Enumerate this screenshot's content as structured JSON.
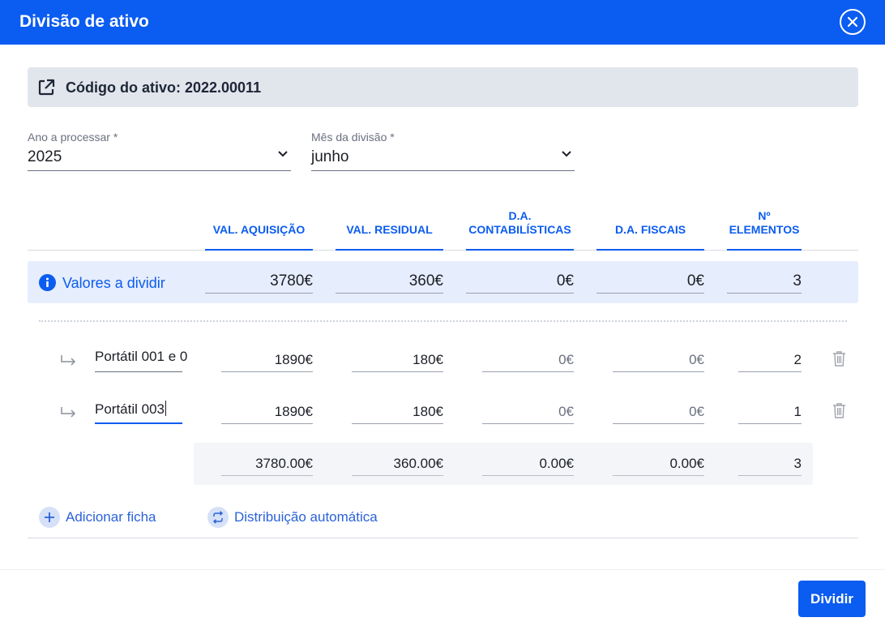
{
  "dialog": {
    "title": "Divisão de ativo"
  },
  "asset": {
    "label": "Código do ativo: 2022.00011"
  },
  "fields": {
    "year": {
      "label": "Ano a processar *",
      "value": "2025"
    },
    "month": {
      "label": "Mês da divisão *",
      "value": "junho"
    }
  },
  "columns": [
    "VAL. AQUISIÇÃO",
    "VAL. RESIDUAL",
    "D.A.\nCONTABILÍSTICAS",
    "D.A. FISCAIS",
    "Nº\nELEMENTOS"
  ],
  "summary": {
    "label": "Valores a dividir",
    "values": [
      "3780€",
      "360€",
      "0€",
      "0€",
      "3"
    ]
  },
  "items": [
    {
      "name": "Portátil 001 e 0",
      "values": [
        "1890€",
        "180€",
        "0€",
        "0€",
        "2"
      ]
    },
    {
      "name": "Portátil 003",
      "values": [
        "1890€",
        "180€",
        "0€",
        "0€",
        "1"
      ]
    }
  ],
  "totals": [
    "3780.00€",
    "360.00€",
    "0.00€",
    "0.00€",
    "3"
  ],
  "actions": {
    "add_label": "Adicionar ficha",
    "auto_label": "Distribuição automática"
  },
  "footer": {
    "submit_label": "Dividir"
  },
  "colors": {
    "primary": "#0b5cf0",
    "summary_bg": "#e6edfc",
    "asset_bar_bg": "#e1e5ec"
  },
  "icons": [
    "close-circle-icon",
    "external-link-icon",
    "chevron-down-icon",
    "info-icon",
    "sub-item-arrow-icon",
    "trash-icon",
    "plus-icon",
    "swap-icon"
  ]
}
